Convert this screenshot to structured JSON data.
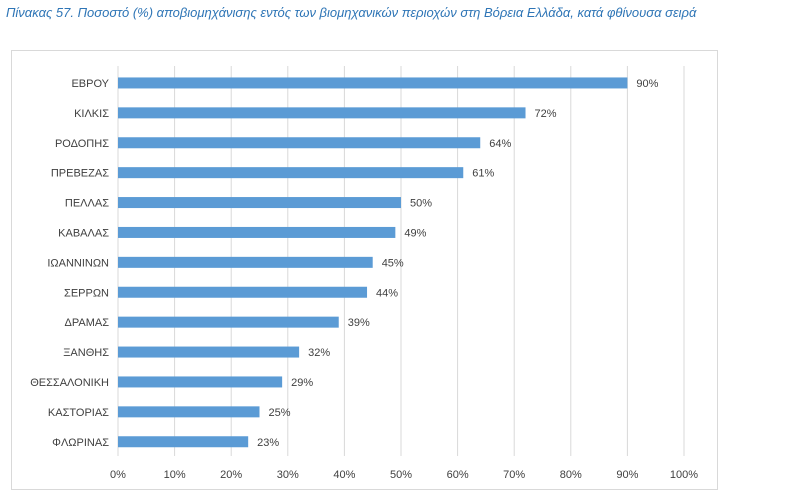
{
  "caption": "Πίνακας 57. Ποσοστό (%) αποβιομηχάνισης εντός των βιομηχανικών περιοχών στη Βόρεια Ελλάδα, κατά φθίνουσα σειρά",
  "chart_data": {
    "type": "bar",
    "orientation": "horizontal",
    "title": "",
    "xlabel": "",
    "ylabel": "",
    "categories": [
      "ΕΒΡΟΥ",
      "ΚΙΛΚΙΣ",
      "ΡΟΔΟΠΗΣ",
      "ΠΡΕΒΕΖΑΣ",
      "ΠΕΛΛΑΣ",
      "ΚΑΒΑΛΑΣ",
      "ΙΩΑΝΝΙΝΩΝ",
      "ΣΕΡΡΩΝ",
      "ΔΡΑΜΑΣ",
      "ΞΑΝΘΗΣ",
      "ΘΕΣΣΑΛΟΝΙΚΗ",
      "ΚΑΣΤΟΡΙΑΣ",
      "ΦΛΩΡΙΝΑΣ"
    ],
    "values": [
      90,
      72,
      64,
      61,
      50,
      49,
      45,
      44,
      39,
      32,
      29,
      25,
      23
    ],
    "value_labels": [
      "90%",
      "72%",
      "64%",
      "61%",
      "50%",
      "49%",
      "45%",
      "44%",
      "39%",
      "32%",
      "29%",
      "25%",
      "23%"
    ],
    "xlim": [
      0,
      100
    ],
    "x_ticks": [
      0,
      10,
      20,
      30,
      40,
      50,
      60,
      70,
      80,
      90,
      100
    ],
    "x_tick_labels": [
      "0%",
      "10%",
      "20%",
      "30%",
      "40%",
      "50%",
      "60%",
      "70%",
      "80%",
      "90%",
      "100%"
    ],
    "grid": "vertical",
    "bar_color": "#5b9bd5",
    "grid_color": "#d9d9d9"
  }
}
